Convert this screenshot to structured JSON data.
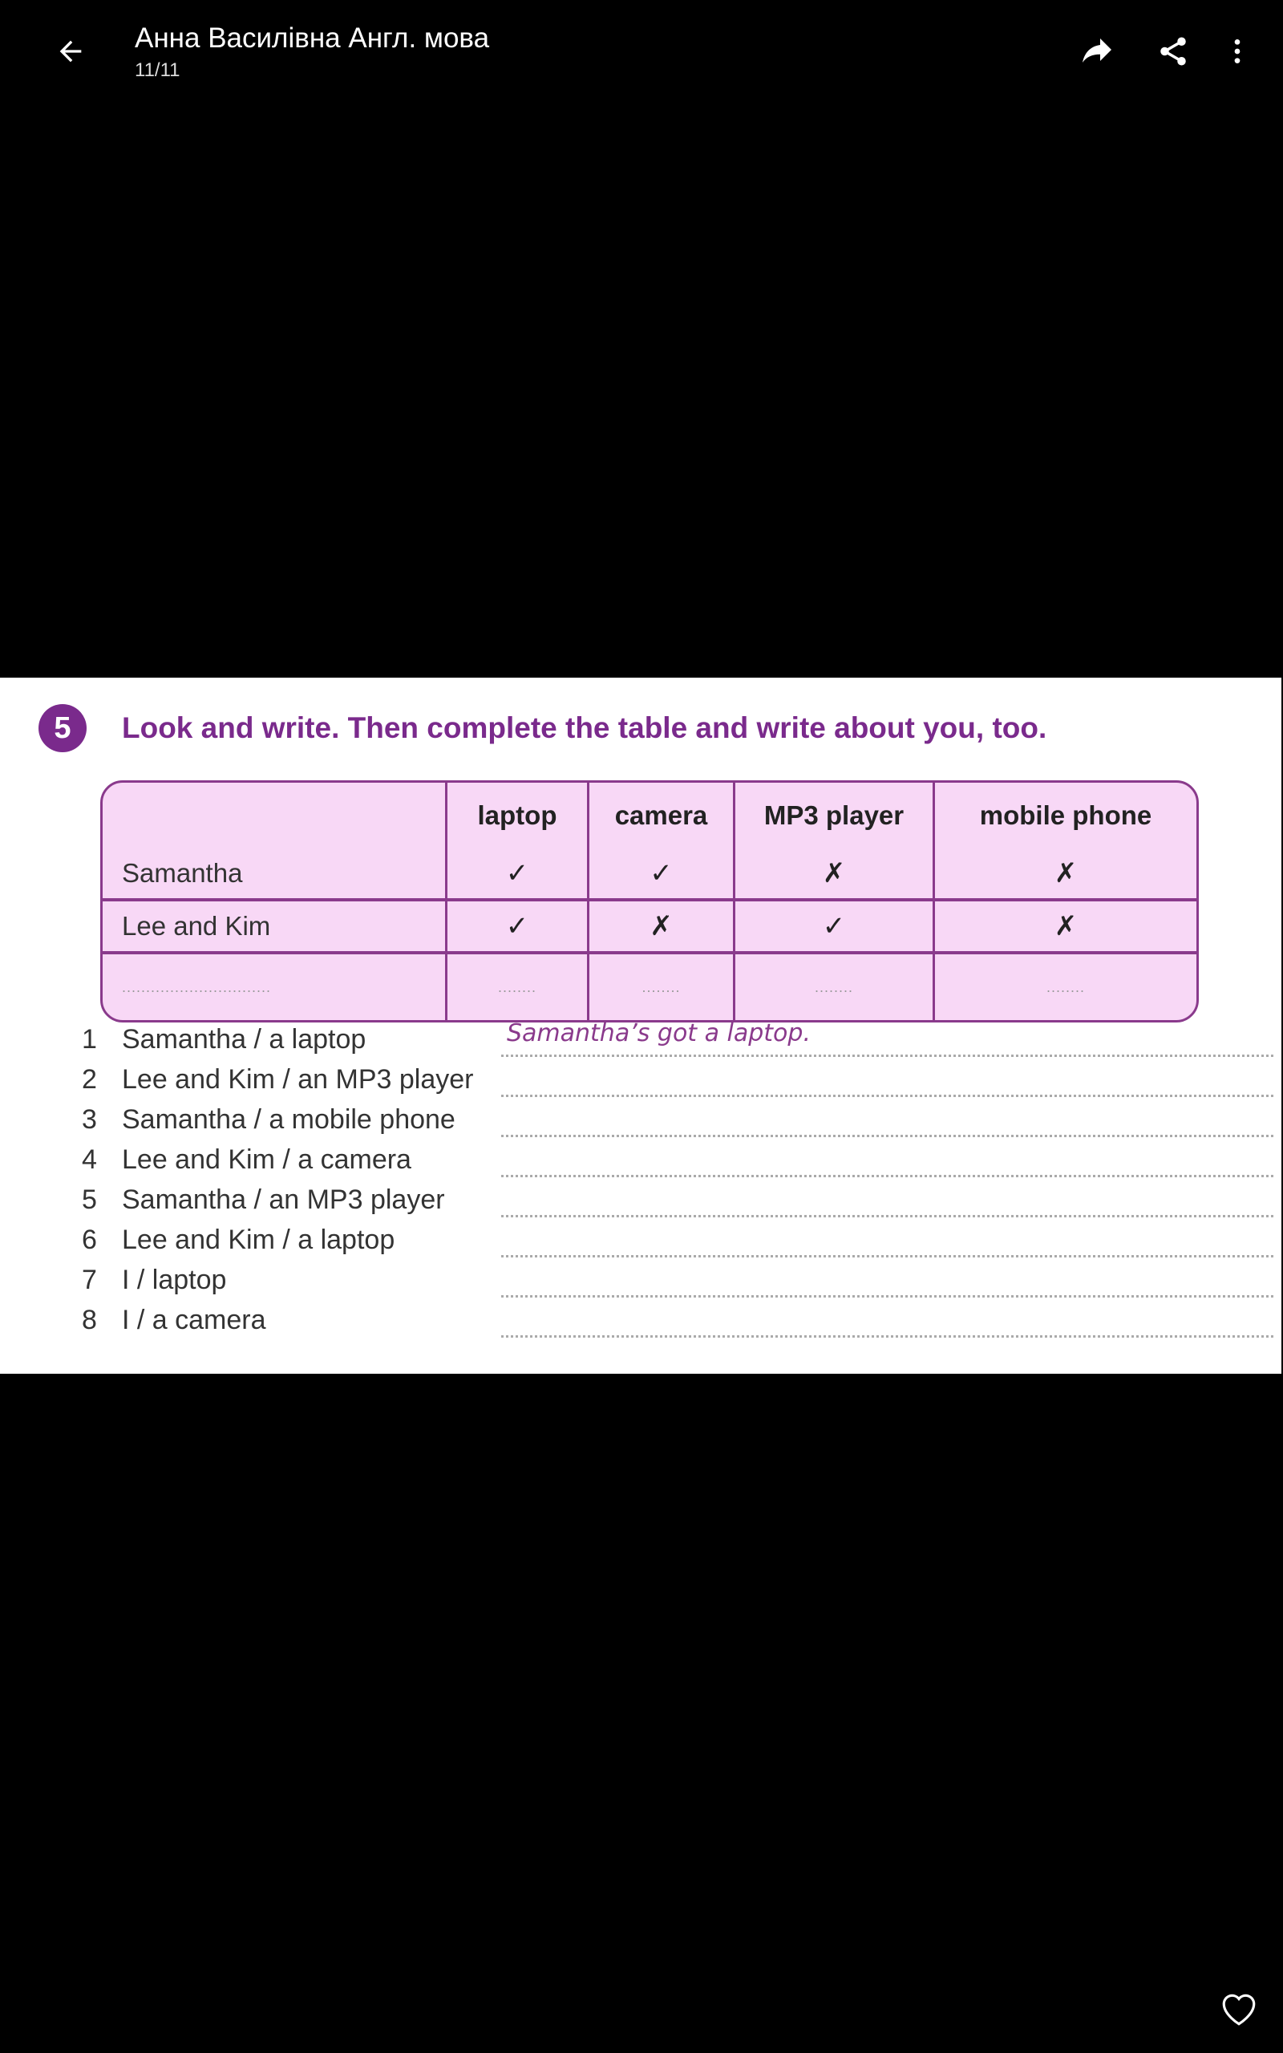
{
  "header": {
    "title": "Анна Василівна Англ. мова",
    "subtitle": "11/11",
    "icons": [
      "arrow-back-icon",
      "forward-icon",
      "share-icon",
      "more-vert-icon"
    ]
  },
  "exercise": {
    "number": "5",
    "instruction": "Look and write. Then complete the table and write about you, too.",
    "table": {
      "columns": [
        "laptop",
        "camera",
        "MP3 player",
        "mobile phone"
      ],
      "rows": [
        {
          "name": "Samantha",
          "marks": [
            "✓",
            "✓",
            "✗",
            "✗"
          ]
        },
        {
          "name": "Lee and Kim",
          "marks": [
            "✓",
            "✗",
            "✓",
            "✗"
          ]
        },
        {
          "name": "...............................",
          "marks": [
            "........",
            "........",
            "........",
            "........"
          ]
        }
      ]
    },
    "items": [
      {
        "n": "1",
        "text": "Samantha / a laptop",
        "answer": "Samantha’s got a laptop."
      },
      {
        "n": "2",
        "text": "Lee and Kim / an MP3 player",
        "answer": ""
      },
      {
        "n": "3",
        "text": "Samantha / a mobile phone",
        "answer": ""
      },
      {
        "n": "4",
        "text": "Lee and Kim / a camera",
        "answer": ""
      },
      {
        "n": "5",
        "text": "Samantha / an MP3 player",
        "answer": ""
      },
      {
        "n": "6",
        "text": "Lee and Kim / a laptop",
        "answer": ""
      },
      {
        "n": "7",
        "text": "I / laptop",
        "answer": ""
      },
      {
        "n": "8",
        "text": "I / a camera",
        "answer": ""
      }
    ],
    "accent": "#7a2a8c",
    "table_fill": "#f8d8f6"
  },
  "footer": {
    "icon": "heart-icon"
  }
}
